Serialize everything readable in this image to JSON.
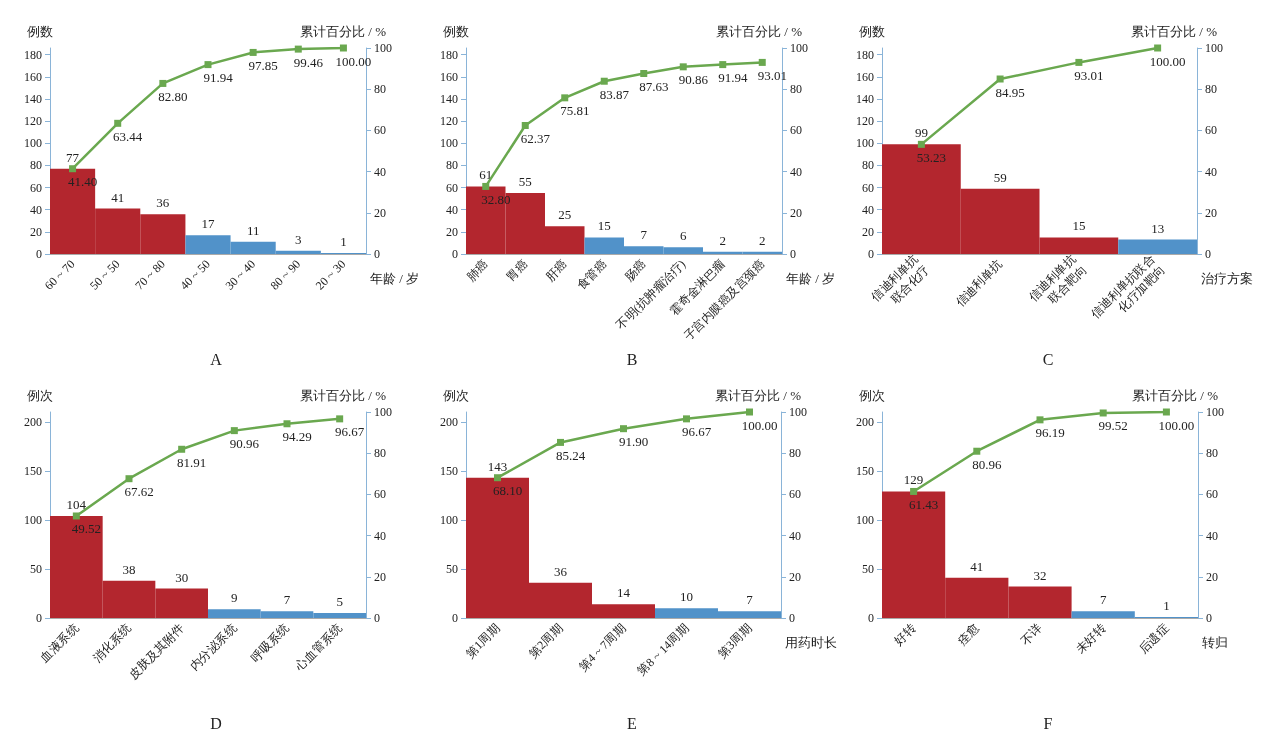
{
  "chart_data": [
    {
      "type": "bar",
      "title": "A",
      "xlabel": "年龄 / 岁",
      "ylabel": "例数",
      "y2label": "累计百分比 / %",
      "categories": [
        "60 ~ 70",
        "50 ~ 50",
        "70 ~ 80",
        "40 ~ 50",
        "30 ~ 40",
        "80 ~ 90",
        "20 ~ 30"
      ],
      "ylim": [
        0,
        186
      ],
      "yticks": [
        0,
        20,
        40,
        60,
        80,
        100,
        120,
        140,
        160,
        180
      ],
      "y2lim": [
        0,
        100
      ],
      "y2ticks": [
        0,
        20,
        40,
        60,
        80,
        100
      ],
      "grid": false,
      "series": [
        {
          "type": "bar",
          "colors": [
            "#b3262e",
            "#b3262e",
            "#b3262e",
            "#5192c9",
            "#5192c9",
            "#5192c9",
            "#5192c9"
          ],
          "values": [
            77,
            41,
            36,
            17,
            11,
            3,
            1
          ],
          "value_labels": [
            "77",
            "41",
            "36",
            "17",
            "11",
            "3",
            "1"
          ]
        },
        {
          "type": "line",
          "axis": "y2",
          "color": "#6aa84f",
          "marker": "square",
          "values": [
            41.4,
            63.44,
            82.8,
            91.94,
            97.85,
            99.46,
            100.0
          ],
          "value_labels": [
            "41.40",
            "63.44",
            "82.80",
            "91.94",
            "97.85",
            "99.46",
            "100.00"
          ]
        }
      ]
    },
    {
      "type": "bar",
      "title": "B",
      "xlabel": "年龄 / 岁",
      "ylabel": "例数",
      "y2label": "累计百分比 / %",
      "categories": [
        "肺癌",
        "胃癌",
        "肝癌",
        "食管癌",
        "肠癌",
        "不明(抗肿瘤治疗)",
        "霍奇金淋巴瘤",
        "子宫内膜癌及宫颈癌"
      ],
      "ylim": [
        0,
        186
      ],
      "yticks": [
        0,
        20,
        40,
        60,
        80,
        100,
        120,
        140,
        160,
        180
      ],
      "y2lim": [
        0,
        100
      ],
      "y2ticks": [
        0,
        20,
        40,
        60,
        80,
        100
      ],
      "grid": false,
      "series": [
        {
          "type": "bar",
          "colors": [
            "#b3262e",
            "#b3262e",
            "#b3262e",
            "#5192c9",
            "#5192c9",
            "#5192c9",
            "#5192c9",
            "#5192c9"
          ],
          "values": [
            61,
            55,
            25,
            15,
            7,
            6,
            2,
            2
          ],
          "value_labels": [
            "61",
            "55",
            "25",
            "15",
            "7",
            "6",
            "2",
            "2"
          ]
        },
        {
          "type": "line",
          "axis": "y2",
          "color": "#6aa84f",
          "marker": "square",
          "values": [
            32.8,
            62.37,
            75.81,
            83.87,
            87.63,
            90.86,
            91.94,
            93.01
          ],
          "value_labels": [
            "32.80",
            "62.37",
            "75.81",
            "83.87",
            "87.63",
            "90.86",
            "91.94",
            "93.01"
          ]
        }
      ]
    },
    {
      "type": "bar",
      "title": "C",
      "xlabel": "治疗方案",
      "ylabel": "例数",
      "y2label": "累计百分比 / %",
      "categories": [
        "信迪利单抗\n联合化疗",
        "信迪利单抗",
        "信迪利单抗\n联合靶向",
        "信迪利单抗联合\n化疗加靶向"
      ],
      "ylim": [
        0,
        186
      ],
      "yticks": [
        0,
        20,
        40,
        60,
        80,
        100,
        120,
        140,
        160,
        180
      ],
      "y2lim": [
        0,
        100
      ],
      "y2ticks": [
        0,
        20,
        40,
        60,
        80,
        100
      ],
      "grid": false,
      "series": [
        {
          "type": "bar",
          "colors": [
            "#b3262e",
            "#b3262e",
            "#b3262e",
            "#5192c9"
          ],
          "values": [
            99,
            59,
            15,
            13
          ],
          "value_labels": [
            "99",
            "59",
            "15",
            "13"
          ]
        },
        {
          "type": "line",
          "axis": "y2",
          "color": "#6aa84f",
          "marker": "square",
          "values": [
            53.23,
            84.95,
            93.01,
            100.0
          ],
          "value_labels": [
            "53.23",
            "84.95",
            "93.01",
            "100.00"
          ]
        }
      ]
    },
    {
      "type": "bar",
      "title": "D",
      "ylabel": "例次",
      "y2label": "累计百分比 / %",
      "categories": [
        "血液系统",
        "消化系统",
        "皮肤及其附件",
        "内分泌系统",
        "呼吸系统",
        "心血管系统"
      ],
      "ylim": [
        0,
        210
      ],
      "yticks": [
        0,
        50,
        100,
        150,
        200
      ],
      "y2lim": [
        0,
        100
      ],
      "y2ticks": [
        0,
        20,
        40,
        60,
        80,
        100
      ],
      "grid": false,
      "series": [
        {
          "type": "bar",
          "colors": [
            "#b3262e",
            "#b3262e",
            "#b3262e",
            "#5192c9",
            "#5192c9",
            "#5192c9"
          ],
          "values": [
            104,
            38,
            30,
            9,
            7,
            5
          ],
          "value_labels": [
            "104",
            "38",
            "30",
            "9",
            "7",
            "5"
          ]
        },
        {
          "type": "line",
          "axis": "y2",
          "color": "#6aa84f",
          "marker": "square",
          "values": [
            49.52,
            67.62,
            81.91,
            90.96,
            94.29,
            96.67
          ],
          "value_labels": [
            "49.52",
            "67.62",
            "81.91",
            "90.96",
            "94.29",
            "96.67"
          ]
        }
      ]
    },
    {
      "type": "bar",
      "title": "E",
      "xlabel": "用药时长",
      "ylabel": "例次",
      "y2label": "累计百分比 / %",
      "categories": [
        "第1周期",
        "第2周期",
        "第4 ~ 7周期",
        "第8 ~ 14周期",
        "第3周期"
      ],
      "ylim": [
        0,
        210
      ],
      "yticks": [
        0,
        50,
        100,
        150,
        200
      ],
      "y2lim": [
        0,
        100
      ],
      "y2ticks": [
        0,
        20,
        40,
        60,
        80,
        100
      ],
      "grid": false,
      "series": [
        {
          "type": "bar",
          "colors": [
            "#b3262e",
            "#b3262e",
            "#b3262e",
            "#5192c9",
            "#5192c9"
          ],
          "values": [
            143,
            36,
            14,
            10,
            7
          ],
          "value_labels": [
            "143",
            "36",
            "14",
            "10",
            "7"
          ]
        },
        {
          "type": "line",
          "axis": "y2",
          "color": "#6aa84f",
          "marker": "square",
          "values": [
            68.1,
            85.24,
            91.9,
            96.67,
            100.0
          ],
          "value_labels": [
            "68.10",
            "85.24",
            "91.90",
            "96.67",
            "100.00"
          ]
        }
      ]
    },
    {
      "type": "bar",
      "title": "F",
      "xlabel": "转归",
      "ylabel": "例次",
      "y2label": "累计百分比 / %",
      "categories": [
        "好转",
        "痊愈",
        "不详",
        "未好转",
        "后遗症"
      ],
      "ylim": [
        0,
        210
      ],
      "yticks": [
        0,
        50,
        100,
        150,
        200
      ],
      "y2lim": [
        0,
        100
      ],
      "y2ticks": [
        0,
        20,
        40,
        60,
        80,
        100
      ],
      "grid": false,
      "series": [
        {
          "type": "bar",
          "colors": [
            "#b3262e",
            "#b3262e",
            "#b3262e",
            "#5192c9",
            "#5192c9"
          ],
          "values": [
            129,
            41,
            32,
            7,
            1
          ],
          "value_labels": [
            "129",
            "41",
            "32",
            "7",
            "1"
          ]
        },
        {
          "type": "line",
          "axis": "y2",
          "color": "#6aa84f",
          "marker": "square",
          "values": [
            61.43,
            80.96,
            96.19,
            99.52,
            100.0
          ],
          "value_labels": [
            "61.43",
            "80.96",
            "96.19",
            "99.52",
            "100.00"
          ]
        }
      ]
    }
  ]
}
